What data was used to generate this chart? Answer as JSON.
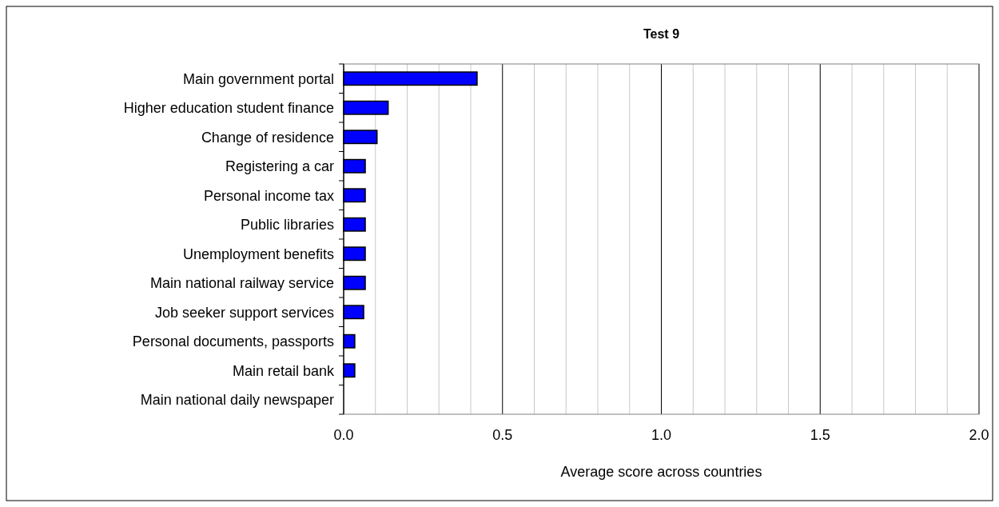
{
  "chart_data": {
    "type": "bar",
    "orientation": "horizontal",
    "title": "Test 9",
    "xlabel": "Average score across countries",
    "categories": [
      "Main government portal",
      "Higher education student finance",
      "Change of residence",
      "Registering a car",
      "Personal income tax",
      "Public libraries",
      "Unemployment benefits",
      "Main national railway service",
      "Job seeker support services",
      "Personal documents, passports",
      "Main retail bank",
      "Main national daily newspaper"
    ],
    "values": [
      0.42,
      0.14,
      0.105,
      0.068,
      0.068,
      0.068,
      0.068,
      0.068,
      0.063,
      0.035,
      0.035,
      0
    ],
    "color": "#0000ff",
    "xlim": [
      0,
      2
    ],
    "xticks": [
      {
        "value": 0,
        "label": "0.0"
      },
      {
        "value": 0.1,
        "label": null
      },
      {
        "value": 0.2,
        "label": null
      },
      {
        "value": 0.3,
        "label": null
      },
      {
        "value": 0.4,
        "label": null
      },
      {
        "value": 0.5,
        "label": "0.5"
      },
      {
        "value": 0.6,
        "label": null
      },
      {
        "value": 0.7,
        "label": null
      },
      {
        "value": 0.8,
        "label": null
      },
      {
        "value": 0.9,
        "label": null
      },
      {
        "value": 1,
        "label": "1.0"
      },
      {
        "value": 1.1,
        "label": null
      },
      {
        "value": 1.2,
        "label": null
      },
      {
        "value": 1.3,
        "label": null
      },
      {
        "value": 1.4,
        "label": null
      },
      {
        "value": 1.5,
        "label": "1.5"
      },
      {
        "value": 1.6,
        "label": null
      },
      {
        "value": 1.7,
        "label": null
      },
      {
        "value": 1.8,
        "label": null
      },
      {
        "value": 1.9,
        "label": null
      },
      {
        "value": 2,
        "label": "2.0"
      }
    ],
    "grid": "x"
  }
}
